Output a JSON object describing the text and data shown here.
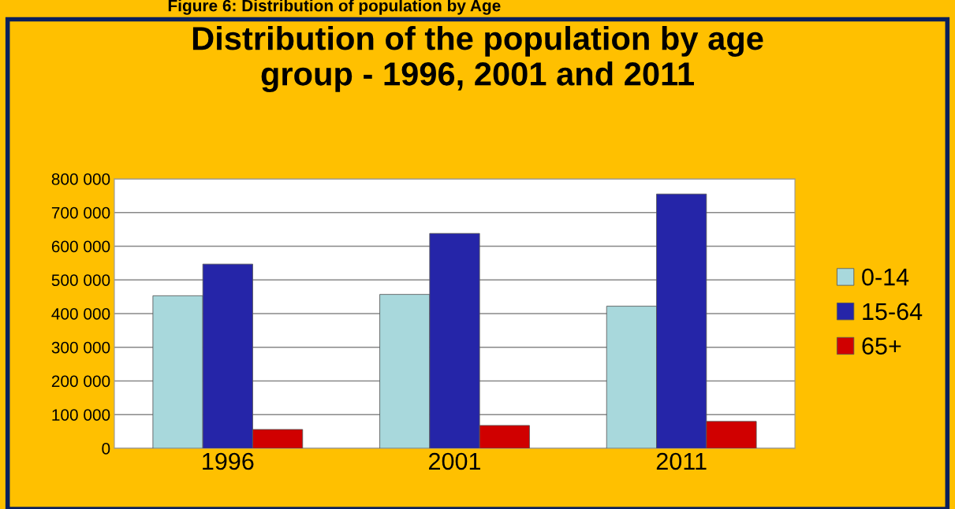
{
  "chart_data": {
    "type": "bar",
    "title": "Distribution of the population by age\ngroup - 1996, 2001 and 2011",
    "annotations": [
      "Figure 6: Distribution of population by Age"
    ],
    "categories": [
      "1996",
      "2001",
      "2011"
    ],
    "series": [
      {
        "name": "0-14",
        "color": "#a8d8dc",
        "values": [
          453000,
          457000,
          422000
        ]
      },
      {
        "name": "15-64",
        "color": "#2525a8",
        "values": [
          547000,
          638000,
          755000
        ]
      },
      {
        "name": "65+",
        "color": "#d00000",
        "values": [
          56000,
          68000,
          80000
        ]
      }
    ],
    "ylim": [
      0,
      800000
    ],
    "yticks": [
      0,
      {
        "value": 100000,
        "label": "100 000"
      },
      {
        "value": 200000,
        "label": "200 000"
      },
      {
        "value": 300000,
        "label": "300 000"
      },
      {
        "value": 400000,
        "label": "400 000"
      },
      {
        "value": 500000,
        "label": "500 000"
      },
      {
        "value": 600000,
        "label": "600 000"
      },
      {
        "value": 700000,
        "label": "700 000"
      },
      {
        "value": 800000,
        "label": "800 000"
      }
    ],
    "grid": "y",
    "legend": "right"
  }
}
